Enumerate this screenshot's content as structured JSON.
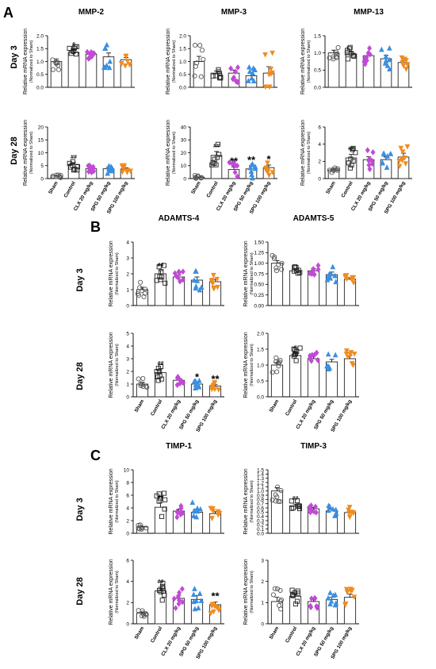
{
  "panels": [
    {
      "letter": "A"
    },
    {
      "letter": "B"
    },
    {
      "letter": "C"
    }
  ],
  "row_labels": [
    "Day 3",
    "Day 28",
    "Day 3",
    "Day 28",
    "Day 3",
    "Day 28"
  ],
  "group_labels": [
    "Sham",
    "Control",
    "CLX 20 mg/kg",
    "SPG 50 mg/kg",
    "SPG 100 mg/kg"
  ],
  "ylabel_main": "Relative mRNA expression",
  "ylabel_sub": "(Normalized to Sham)",
  "colors": {
    "sham": "#555555",
    "control": "#222222",
    "clx": "#c04ad6",
    "spg50": "#3a8fe0",
    "spg100": "#f08c1e",
    "bar_outline": "#222222"
  },
  "chart_data": [
    {
      "type": "bar",
      "title": "MMP-2",
      "row": "Day 3",
      "categories": [
        "Sham",
        "Control",
        "CLX 20 mg/kg",
        "SPG 50 mg/kg",
        "SPG 100 mg/kg"
      ],
      "values": [
        1.0,
        1.35,
        1.28,
        1.18,
        1.07
      ],
      "errors": [
        0.1,
        0.1,
        0.1,
        0.15,
        0.08
      ],
      "ylim": [
        0,
        2.0
      ],
      "yticks": [
        "0.0",
        "0.5",
        "1.0",
        "1.5",
        "2.0"
      ],
      "annotations": [
        "",
        "#",
        "",
        "",
        ""
      ]
    },
    {
      "type": "bar",
      "title": "MMP-3",
      "row": "Day 3",
      "categories": [
        "Sham",
        "Control",
        "CLX 20 mg/kg",
        "SPG 50 mg/kg",
        "SPG 100 mg/kg"
      ],
      "values": [
        1.0,
        0.55,
        0.55,
        0.45,
        0.55
      ],
      "errors": [
        0.2,
        0.08,
        0.12,
        0.12,
        0.25
      ],
      "ylim": [
        0,
        2.0
      ],
      "yticks": [
        "0.0",
        "0.5",
        "1.0",
        "1.5",
        "2.0"
      ],
      "annotations": [
        "",
        "",
        "",
        "",
        ""
      ]
    },
    {
      "type": "bar",
      "title": "MMP-13",
      "row": "Day 3",
      "categories": [
        "Sham",
        "Control",
        "CLX 20 mg/kg",
        "SPG 50 mg/kg",
        "SPG 100 mg/kg"
      ],
      "values": [
        1.0,
        0.97,
        0.92,
        0.83,
        0.72
      ],
      "errors": [
        0.08,
        0.06,
        0.08,
        0.1,
        0.06
      ],
      "ylim": [
        0,
        1.5
      ],
      "yticks": [
        "0.0",
        "0.5",
        "1.0",
        "1.5"
      ],
      "annotations": [
        "",
        "",
        "",
        "",
        ""
      ]
    },
    {
      "type": "bar",
      "title": "",
      "row": "Day 28",
      "categories": [
        "Sham",
        "Control",
        "CLX 20 mg/kg",
        "SPG 50 mg/kg",
        "SPG 100 mg/kg"
      ],
      "values": [
        1.0,
        5.5,
        3.8,
        3.8,
        3.7
      ],
      "errors": [
        0.2,
        0.7,
        0.6,
        0.6,
        0.5
      ],
      "ylim": [
        0,
        20
      ],
      "yticks": [
        "0",
        "5",
        "10",
        "15",
        "20"
      ],
      "annotations": [
        "",
        "##",
        "",
        "",
        ""
      ]
    },
    {
      "type": "bar",
      "title": "",
      "row": "Day 28",
      "categories": [
        "Sham",
        "Control",
        "CLX 20 mg/kg",
        "SPG 50 mg/kg",
        "SPG 100 mg/kg"
      ],
      "values": [
        1.0,
        18.0,
        7.0,
        7.5,
        8.5
      ],
      "errors": [
        0.3,
        3.0,
        2.0,
        2.5,
        2.0
      ],
      "ylim": [
        0,
        40
      ],
      "yticks": [
        "0",
        "10",
        "20",
        "30",
        "40"
      ],
      "annotations": [
        "",
        "##",
        "**",
        "**",
        "*"
      ]
    },
    {
      "type": "bar",
      "title": "",
      "row": "Day 28",
      "categories": [
        "Sham",
        "Control",
        "CLX 20 mg/kg",
        "SPG 50 mg/kg",
        "SPG 100 mg/kg"
      ],
      "values": [
        1.0,
        2.4,
        2.2,
        2.2,
        2.5
      ],
      "errors": [
        0.1,
        0.4,
        0.35,
        0.3,
        0.45
      ],
      "ylim": [
        0,
        6
      ],
      "yticks": [
        "0",
        "2",
        "4",
        "6"
      ],
      "annotations": [
        "",
        "##",
        "",
        "",
        ""
      ]
    },
    {
      "type": "bar",
      "title": "ADAMTS-4",
      "row": "Day 3",
      "categories": [
        "Sham",
        "Control",
        "CLX 20 mg/kg",
        "SPG 50 mg/kg",
        "SPG 100 mg/kg"
      ],
      "values": [
        1.0,
        2.0,
        1.8,
        1.6,
        1.5
      ],
      "errors": [
        0.15,
        0.2,
        0.12,
        0.2,
        0.15
      ],
      "ylim": [
        0,
        4
      ],
      "yticks": [
        "0",
        "1",
        "2",
        "3",
        "4"
      ],
      "annotations": [
        "",
        "##",
        "",
        "",
        ""
      ]
    },
    {
      "type": "bar",
      "title": "ADAMTS-5",
      "row": "Day 3",
      "categories": [
        "Sham",
        "Control",
        "CLX 20 mg/kg",
        "SPG 50 mg/kg",
        "SPG 100 mg/kg"
      ],
      "values": [
        1.0,
        0.82,
        0.82,
        0.73,
        0.62
      ],
      "errors": [
        0.06,
        0.03,
        0.06,
        0.06,
        0.03
      ],
      "ylim": [
        0,
        1.5
      ],
      "yticks": [
        "0.00",
        "0.25",
        "0.50",
        "0.75",
        "1.00",
        "1.25",
        "1.50"
      ],
      "annotations": [
        "",
        "",
        "",
        "",
        ""
      ]
    },
    {
      "type": "bar",
      "title": "",
      "row": "Day 28",
      "categories": [
        "Sham",
        "Control",
        "CLX 20 mg/kg",
        "SPG 50 mg/kg",
        "SPG 100 mg/kg"
      ],
      "values": [
        1.0,
        1.9,
        1.3,
        1.0,
        0.85
      ],
      "errors": [
        0.15,
        0.3,
        0.15,
        0.1,
        0.1
      ],
      "ylim": [
        0,
        5
      ],
      "yticks": [
        "0",
        "1",
        "2",
        "3",
        "4",
        "5"
      ],
      "annotations": [
        "",
        "##",
        "",
        "*",
        "**"
      ]
    },
    {
      "type": "bar",
      "title": "",
      "row": "Day 28",
      "categories": [
        "Sham",
        "Control",
        "CLX 20 mg/kg",
        "SPG 50 mg/kg",
        "SPG 100 mg/kg"
      ],
      "values": [
        1.0,
        1.3,
        1.2,
        1.1,
        1.2
      ],
      "errors": [
        0.08,
        0.08,
        0.08,
        0.08,
        0.1
      ],
      "ylim": [
        0,
        2.0
      ],
      "yticks": [
        "0.0",
        "0.5",
        "1.0",
        "1.5",
        "2.0"
      ],
      "annotations": [
        "",
        "#",
        "",
        "",
        ""
      ]
    },
    {
      "type": "bar",
      "title": "TIMP-1",
      "row": "Day 3",
      "categories": [
        "Sham",
        "Control",
        "CLX 20 mg/kg",
        "SPG 50 mg/kg",
        "SPG 100 mg/kg"
      ],
      "values": [
        1.0,
        4.1,
        3.5,
        3.3,
        3.1
      ],
      "errors": [
        0.1,
        0.7,
        0.3,
        0.5,
        0.3
      ],
      "ylim": [
        0,
        10
      ],
      "yticks": [
        "0",
        "2",
        "4",
        "6",
        "8",
        "10"
      ],
      "annotations": [
        "",
        "##",
        "",
        "",
        ""
      ]
    },
    {
      "type": "bar",
      "title": "TIMP-3",
      "row": "Day 3",
      "categories": [
        "Sham",
        "Control",
        "CLX 20 mg/kg",
        "SPG 50 mg/kg",
        "SPG 100 mg/kg"
      ],
      "values": [
        1.0,
        0.65,
        0.58,
        0.53,
        0.49
      ],
      "errors": [
        0.08,
        0.04,
        0.03,
        0.04,
        0.04
      ],
      "ylim": [
        0,
        1.5
      ],
      "yticks": [
        "0.0",
        "0.1",
        "0.2",
        "0.3",
        "0.4",
        "0.5",
        "0.6",
        "0.7",
        "0.8",
        "0.9",
        "1.0",
        "1.1",
        "1.2",
        "1.3",
        "1.4",
        "1.5"
      ],
      "annotations": [
        "",
        "##",
        "",
        "",
        ""
      ]
    },
    {
      "type": "bar",
      "title": "",
      "row": "Day 28",
      "categories": [
        "Sham",
        "Control",
        "CLX 20 mg/kg",
        "SPG 50 mg/kg",
        "SPG 100 mg/kg"
      ],
      "values": [
        1.0,
        3.1,
        2.4,
        2.3,
        1.8
      ],
      "errors": [
        0.1,
        0.35,
        0.3,
        0.35,
        0.25
      ],
      "ylim": [
        0,
        6
      ],
      "yticks": [
        "0",
        "2",
        "4",
        "6"
      ],
      "annotations": [
        "",
        "##",
        "",
        "",
        "**"
      ]
    },
    {
      "type": "bar",
      "title": "",
      "row": "Day 28",
      "categories": [
        "Sham",
        "Control",
        "CLX 20 mg/kg",
        "SPG 50 mg/kg",
        "SPG 100 mg/kg"
      ],
      "values": [
        1.05,
        1.3,
        1.05,
        1.15,
        1.25
      ],
      "errors": [
        0.2,
        0.12,
        0.1,
        0.1,
        0.15
      ],
      "ylim": [
        0,
        3
      ],
      "yticks": [
        "0",
        "1",
        "2",
        "3"
      ],
      "annotations": [
        "",
        "",
        "",
        "",
        ""
      ]
    }
  ]
}
